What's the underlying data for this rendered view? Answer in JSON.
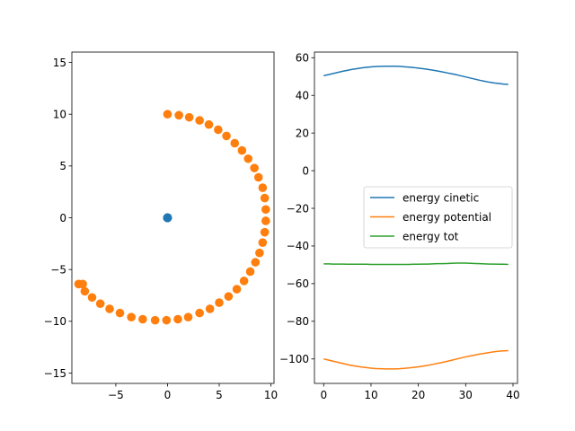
{
  "chart_data": [
    {
      "type": "scatter",
      "title": "",
      "xlabel": "",
      "ylabel": "",
      "xlim": [
        -9.25,
        10.3
      ],
      "ylim": [
        -16,
        16
      ],
      "xticks": [
        -5,
        0,
        5,
        10
      ],
      "yticks": [
        -15,
        -10,
        -5,
        0,
        5,
        10,
        15
      ],
      "grid": false,
      "series": [
        {
          "color": "#1f77b4",
          "points": [
            [
              0,
              0
            ],
            [
              0,
              0
            ],
            [
              0,
              0
            ],
            [
              0,
              0
            ],
            [
              0,
              0
            ],
            [
              0,
              0
            ],
            [
              0,
              0
            ],
            [
              0,
              0
            ],
            [
              0,
              0
            ],
            [
              0,
              0
            ],
            [
              0,
              0
            ],
            [
              0,
              0
            ],
            [
              0,
              0
            ],
            [
              0,
              0
            ],
            [
              0,
              0
            ],
            [
              0,
              0
            ],
            [
              0,
              0
            ],
            [
              0,
              0
            ],
            [
              0,
              0
            ],
            [
              0,
              0
            ],
            [
              0,
              0
            ],
            [
              0,
              0
            ],
            [
              0,
              0
            ],
            [
              0,
              0
            ],
            [
              0,
              0
            ],
            [
              0,
              0
            ],
            [
              0,
              0
            ],
            [
              0,
              0
            ],
            [
              0,
              0
            ],
            [
              0,
              0
            ],
            [
              0,
              0
            ],
            [
              0,
              0
            ],
            [
              0,
              0
            ],
            [
              0,
              0
            ],
            [
              0,
              0
            ],
            [
              0,
              0
            ],
            [
              0,
              0
            ],
            [
              0,
              0
            ],
            [
              0,
              0
            ],
            [
              0,
              0
            ]
          ]
        },
        {
          "color": "#ff7f0e",
          "points": [
            [
              0.0,
              10.0
            ],
            [
              1.1,
              9.9
            ],
            [
              2.1,
              9.7
            ],
            [
              3.1,
              9.4
            ],
            [
              4.0,
              9.0
            ],
            [
              4.9,
              8.5
            ],
            [
              5.7,
              7.9
            ],
            [
              6.5,
              7.2
            ],
            [
              7.2,
              6.5
            ],
            [
              7.8,
              5.7
            ],
            [
              8.4,
              4.8
            ],
            [
              8.8,
              3.9
            ],
            [
              9.2,
              2.9
            ],
            [
              9.4,
              1.9
            ],
            [
              9.5,
              0.8
            ],
            [
              9.5,
              -0.3
            ],
            [
              9.4,
              -1.4
            ],
            [
              9.2,
              -2.4
            ],
            [
              8.9,
              -3.4
            ],
            [
              8.5,
              -4.3
            ],
            [
              8.0,
              -5.2
            ],
            [
              7.4,
              -6.1
            ],
            [
              6.7,
              -6.9
            ],
            [
              5.9,
              -7.6
            ],
            [
              5.0,
              -8.2
            ],
            [
              4.1,
              -8.8
            ],
            [
              3.1,
              -9.2
            ],
            [
              2.0,
              -9.6
            ],
            [
              1.0,
              -9.8
            ],
            [
              -0.1,
              -9.9
            ],
            [
              -1.2,
              -9.9
            ],
            [
              -2.4,
              -9.8
            ],
            [
              -3.5,
              -9.6
            ],
            [
              -4.6,
              -9.2
            ],
            [
              -5.6,
              -8.8
            ],
            [
              -6.5,
              -8.3
            ],
            [
              -7.3,
              -7.7
            ],
            [
              -8.0,
              -7.1
            ],
            [
              -8.6,
              -6.4
            ],
            [
              -8.2,
              -6.4
            ]
          ]
        }
      ]
    },
    {
      "type": "line",
      "title": "",
      "xlabel": "",
      "ylabel": "",
      "xlim": [
        -1.95,
        40.95
      ],
      "ylim": [
        -113,
        63
      ],
      "xticks": [
        0,
        10,
        20,
        30,
        40
      ],
      "yticks": [
        -100,
        -80,
        -60,
        -40,
        -20,
        0,
        20,
        40,
        60
      ],
      "grid": false,
      "legend_position": "center-right",
      "x": [
        0,
        1,
        2,
        3,
        4,
        5,
        6,
        7,
        8,
        9,
        10,
        11,
        12,
        13,
        14,
        15,
        16,
        17,
        18,
        19,
        20,
        21,
        22,
        23,
        24,
        25,
        26,
        27,
        28,
        29,
        30,
        31,
        32,
        33,
        34,
        35,
        36,
        37,
        38,
        39
      ],
      "series": [
        {
          "name": "energy cinetic",
          "color": "#1f77b4",
          "values": [
            50.5,
            51.0,
            51.6,
            52.2,
            52.8,
            53.3,
            53.8,
            54.2,
            54.6,
            54.9,
            55.1,
            55.3,
            55.4,
            55.5,
            55.5,
            55.5,
            55.4,
            55.2,
            55.0,
            54.8,
            54.5,
            54.2,
            53.8,
            53.4,
            53.0,
            52.5,
            52.0,
            51.5,
            51.0,
            50.4,
            49.8,
            49.2,
            48.6,
            48.0,
            47.5,
            47.0,
            46.6,
            46.3,
            46.0,
            45.8
          ]
        },
        {
          "name": "energy potential",
          "color": "#ff7f0e",
          "values": [
            -100.0,
            -100.6,
            -101.2,
            -101.8,
            -102.4,
            -103.0,
            -103.5,
            -103.9,
            -104.3,
            -104.6,
            -104.9,
            -105.1,
            -105.2,
            -105.3,
            -105.3,
            -105.3,
            -105.2,
            -105.0,
            -104.8,
            -104.5,
            -104.2,
            -103.8,
            -103.4,
            -102.9,
            -102.4,
            -101.9,
            -101.3,
            -100.7,
            -100.1,
            -99.5,
            -98.9,
            -98.4,
            -97.9,
            -97.4,
            -97.0,
            -96.6,
            -96.2,
            -95.9,
            -95.7,
            -95.6
          ]
        },
        {
          "name": "energy tot",
          "color": "#2ca02c",
          "values": [
            -49.5,
            -49.5,
            -49.6,
            -49.6,
            -49.6,
            -49.7,
            -49.7,
            -49.7,
            -49.7,
            -49.7,
            -49.8,
            -49.8,
            -49.8,
            -49.8,
            -49.8,
            -49.8,
            -49.8,
            -49.8,
            -49.8,
            -49.7,
            -49.7,
            -49.6,
            -49.6,
            -49.5,
            -49.4,
            -49.4,
            -49.3,
            -49.2,
            -49.1,
            -49.1,
            -49.1,
            -49.2,
            -49.3,
            -49.4,
            -49.5,
            -49.6,
            -49.6,
            -49.7,
            -49.7,
            -49.8
          ]
        }
      ]
    }
  ]
}
